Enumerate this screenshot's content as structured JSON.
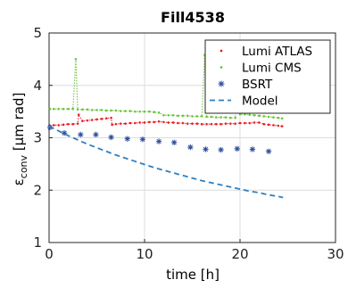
{
  "chart_data": {
    "type": "scatter",
    "title": "Fill4538",
    "xlabel": "time [h]",
    "ylabel_prefix": "ε",
    "ylabel_sub": "conv",
    "ylabel_suffix": " [μm rad]",
    "xlim": [
      0,
      30
    ],
    "ylim": [
      1,
      5
    ],
    "xticks": [
      0,
      10,
      20,
      30
    ],
    "yticks": [
      1,
      2,
      3,
      4,
      5
    ],
    "xtick_labels": [
      "0",
      "10",
      "20",
      "30"
    ],
    "ytick_labels": [
      "1",
      "2",
      "3",
      "4",
      "5"
    ],
    "grid": true,
    "legend_position": "top-right",
    "series": [
      {
        "name": "Lumi ATLAS",
        "color": "#e8212a",
        "marker": "dot",
        "x": [
          0.1,
          0.5,
          1.0,
          1.5,
          2.0,
          2.5,
          3.0,
          3.1,
          3.5,
          4.0,
          4.5,
          5.0,
          5.5,
          6.0,
          6.5,
          6.6,
          7.0,
          7.5,
          8.0,
          8.5,
          9.0,
          9.5,
          10.0,
          10.5,
          11.0,
          11.5,
          12.0,
          12.5,
          13.0,
          13.5,
          14.0,
          14.5,
          15.0,
          15.5,
          16.0,
          16.5,
          17.0,
          17.5,
          18.0,
          18.5,
          19.0,
          19.5,
          20.0,
          20.5,
          21.0,
          21.5,
          22.0,
          22.5,
          23.0,
          23.5,
          24.0,
          24.4
        ],
        "y": [
          3.22,
          3.24,
          3.24,
          3.25,
          3.26,
          3.26,
          3.27,
          3.44,
          3.32,
          3.33,
          3.34,
          3.35,
          3.36,
          3.37,
          3.38,
          3.25,
          3.26,
          3.27,
          3.27,
          3.28,
          3.28,
          3.29,
          3.29,
          3.3,
          3.3,
          3.31,
          3.3,
          3.29,
          3.29,
          3.28,
          3.28,
          3.27,
          3.27,
          3.27,
          3.26,
          3.26,
          3.26,
          3.26,
          3.26,
          3.27,
          3.27,
          3.27,
          3.28,
          3.28,
          3.28,
          3.29,
          3.29,
          3.26,
          3.25,
          3.24,
          3.23,
          3.22
        ]
      },
      {
        "name": "Lumi CMS",
        "color": "#6cc43a",
        "marker": "dot",
        "x": [
          0.1,
          0.5,
          1.0,
          1.5,
          2.0,
          2.5,
          2.8,
          3.0,
          3.5,
          4.0,
          4.5,
          5.0,
          5.5,
          6.0,
          6.5,
          7.0,
          7.5,
          8.0,
          8.5,
          9.0,
          9.5,
          10.0,
          10.5,
          11.0,
          11.5,
          12.0,
          12.5,
          13.0,
          13.5,
          14.0,
          14.5,
          15.0,
          15.5,
          16.0,
          16.3,
          16.5,
          17.0,
          17.5,
          18.0,
          18.5,
          19.0,
          19.5,
          19.8,
          20.0,
          20.5,
          21.0,
          21.5,
          22.0,
          22.5,
          23.0,
          23.5,
          24.0,
          24.4
        ],
        "y": [
          3.55,
          3.55,
          3.55,
          3.55,
          3.55,
          3.55,
          4.5,
          3.54,
          3.54,
          3.54,
          3.53,
          3.53,
          3.53,
          3.52,
          3.52,
          3.52,
          3.51,
          3.51,
          3.51,
          3.5,
          3.5,
          3.5,
          3.5,
          3.49,
          3.48,
          3.43,
          3.43,
          3.43,
          3.42,
          3.42,
          3.42,
          3.41,
          3.41,
          3.41,
          4.58,
          3.4,
          3.4,
          3.39,
          3.39,
          3.39,
          3.38,
          3.38,
          4.18,
          3.45,
          3.45,
          3.44,
          3.43,
          3.42,
          3.41,
          3.4,
          3.39,
          3.38,
          3.37
        ]
      },
      {
        "name": "BSRT",
        "color": "#2e4d9c",
        "marker": "star",
        "x": [
          0.1,
          1.6,
          3.3,
          4.9,
          6.5,
          8.2,
          9.8,
          11.5,
          13.1,
          14.8,
          16.4,
          18.0,
          19.7,
          21.3,
          23.0
        ],
        "y": [
          3.2,
          3.09,
          3.06,
          3.06,
          3.01,
          2.98,
          2.97,
          2.93,
          2.91,
          2.82,
          2.78,
          2.77,
          2.79,
          2.78,
          2.74
        ]
      },
      {
        "name": "Model",
        "color": "#2f7fc1",
        "marker": "dashed-line",
        "x": [
          0,
          1,
          2,
          3,
          4,
          5,
          6,
          7,
          8,
          9,
          10,
          11,
          12,
          13,
          14,
          15,
          16,
          17,
          18,
          19,
          20,
          21,
          22,
          23,
          24,
          24.5
        ],
        "y": [
          3.22,
          3.13,
          3.04,
          2.96,
          2.88,
          2.81,
          2.74,
          2.67,
          2.61,
          2.55,
          2.49,
          2.43,
          2.38,
          2.33,
          2.28,
          2.23,
          2.18,
          2.14,
          2.1,
          2.06,
          2.02,
          1.98,
          1.95,
          1.91,
          1.88,
          1.86
        ]
      }
    ]
  }
}
